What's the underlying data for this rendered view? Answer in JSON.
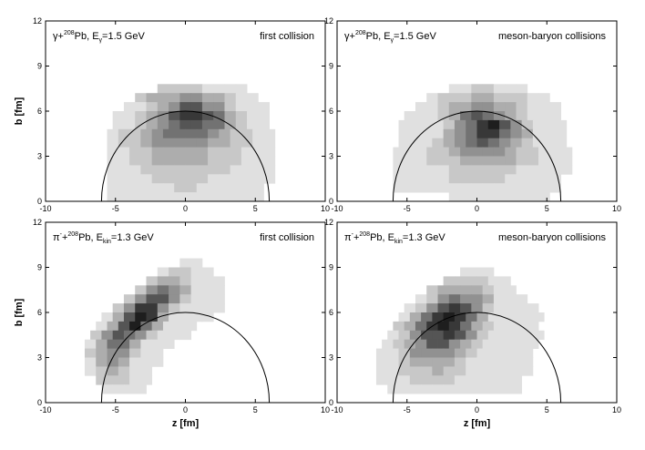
{
  "figure": {
    "x_axis_label": "z [fm]",
    "y_axis_label": "b [fm]"
  },
  "chart_data": [
    {
      "type": "heatmap",
      "id": "tl",
      "annotation_left": {
        "pre": "γ+",
        "sup": "208",
        "mid": "Pb, E",
        "sub": "γ",
        "post": "=1.5 GeV"
      },
      "annotation_right": "first collision",
      "xlim": [
        -10,
        10
      ],
      "ylim": [
        0,
        12
      ],
      "xticks": [
        -10,
        -5,
        0,
        5,
        10
      ],
      "yticks": [
        0,
        3,
        6,
        9,
        12
      ],
      "show_ylabel": true,
      "show_xlabel": false,
      "circle": {
        "center": [
          0,
          0
        ],
        "radius": 6
      },
      "cell": {
        "dz": 0.8,
        "db": 0.6
      },
      "rows": [
        {
          "b": 7.2,
          "z": [
            -2.0,
            3.6
          ],
          "peak": 0.0,
          "sz": 4.0,
          "max": 0.15
        },
        {
          "b": 6.6,
          "z": [
            -3.6,
            4.4
          ],
          "peak": 0.0,
          "sz": 3.4,
          "max": 0.4
        },
        {
          "b": 6.0,
          "z": [
            -4.4,
            5.2
          ],
          "peak": 0.5,
          "sz": 2.6,
          "max": 0.62
        },
        {
          "b": 5.4,
          "z": [
            -5.2,
            5.2
          ],
          "peak": 0.5,
          "sz": 2.8,
          "max": 0.82
        },
        {
          "b": 4.8,
          "z": [
            -5.2,
            5.6
          ],
          "peak": 0.5,
          "sz": 3.0,
          "max": 0.7
        },
        {
          "b": 4.2,
          "z": [
            -5.6,
            5.6
          ],
          "peak": 0.0,
          "sz": 3.6,
          "max": 0.55
        },
        {
          "b": 3.6,
          "z": [
            -5.6,
            5.6
          ],
          "peak": 0.0,
          "sz": 4.0,
          "max": 0.45
        },
        {
          "b": 3.0,
          "z": [
            -5.6,
            5.6
          ],
          "peak": 0.0,
          "sz": 4.0,
          "max": 0.32
        },
        {
          "b": 2.4,
          "z": [
            -5.6,
            5.6
          ],
          "peak": 0.0,
          "sz": 4.2,
          "max": 0.3
        },
        {
          "b": 1.8,
          "z": [
            -5.6,
            5.6
          ],
          "peak": 0.0,
          "sz": 4.2,
          "max": 0.22
        },
        {
          "b": 1.2,
          "z": [
            -5.6,
            5.6
          ],
          "peak": 0.0,
          "sz": 4.6,
          "max": 0.15
        },
        {
          "b": 0.6,
          "z": [
            -5.6,
            5.2
          ],
          "peak": 0.0,
          "sz": 4.6,
          "max": 0.12
        },
        {
          "b": 0.0,
          "z": [
            -5.6,
            4.8
          ],
          "peak": 0.0,
          "sz": 4.6,
          "max": 0.08
        }
      ]
    },
    {
      "type": "heatmap",
      "id": "tr",
      "annotation_left": {
        "pre": "γ+",
        "sup": "208",
        "mid": "Pb, E",
        "sub": "γ",
        "post": "=1.5 GeV"
      },
      "annotation_right": "meson-baryon collisions",
      "xlim": [
        -10,
        10
      ],
      "ylim": [
        0,
        12
      ],
      "xticks": [
        -10,
        -5,
        0,
        5,
        10
      ],
      "yticks": [
        0,
        3,
        6,
        9,
        12
      ],
      "show_ylabel": false,
      "show_xlabel": false,
      "circle": {
        "center": [
          0,
          0
        ],
        "radius": 6
      },
      "cell": {
        "dz": 0.8,
        "db": 0.6
      },
      "rows": [
        {
          "b": 7.2,
          "z": [
            -2.0,
            3.2
          ],
          "peak": 0.4,
          "sz": 3.6,
          "max": 0.12
        },
        {
          "b": 6.6,
          "z": [
            -3.6,
            4.4
          ],
          "peak": 0.4,
          "sz": 3.6,
          "max": 0.3
        },
        {
          "b": 6.0,
          "z": [
            -4.4,
            5.2
          ],
          "peak": 0.4,
          "sz": 3.0,
          "max": 0.45
        },
        {
          "b": 5.4,
          "z": [
            -5.2,
            5.2
          ],
          "peak": 0.4,
          "sz": 2.6,
          "max": 0.62
        },
        {
          "b": 4.8,
          "z": [
            -5.6,
            5.6
          ],
          "peak": 0.8,
          "sz": 2.4,
          "max": 0.82
        },
        {
          "b": 4.2,
          "z": [
            -5.6,
            5.6
          ],
          "peak": 0.8,
          "sz": 2.6,
          "max": 0.75
        },
        {
          "b": 3.6,
          "z": [
            -5.6,
            6.0
          ],
          "peak": 0.4,
          "sz": 3.0,
          "max": 0.6
        },
        {
          "b": 3.0,
          "z": [
            -6.0,
            6.0
          ],
          "peak": 0.4,
          "sz": 3.2,
          "max": 0.45
        },
        {
          "b": 2.4,
          "z": [
            -6.0,
            6.0
          ],
          "peak": 0.4,
          "sz": 3.6,
          "max": 0.32
        },
        {
          "b": 1.8,
          "z": [
            -6.0,
            6.0
          ],
          "peak": 0.4,
          "sz": 4.0,
          "max": 0.2
        },
        {
          "b": 1.2,
          "z": [
            -6.0,
            5.6
          ],
          "peak": 0.4,
          "sz": 4.4,
          "max": 0.15
        },
        {
          "b": 0.6,
          "z": [
            -6.0,
            5.6
          ],
          "peak": 0.4,
          "sz": 4.6,
          "max": 0.1
        },
        {
          "b": 0.0,
          "z": [
            -2.0,
            4.4
          ],
          "peak": 0.4,
          "sz": 4.0,
          "max": 0.06
        }
      ]
    },
    {
      "type": "heatmap",
      "id": "bl",
      "annotation_left": {
        "pre": "π",
        "sup": "-",
        "mid": "+",
        "sup2": "208",
        "mid2": "Pb, E",
        "sub": "kin",
        "post": "=1.3 GeV"
      },
      "annotation_right": "first collision",
      "xlim": [
        -10,
        10
      ],
      "ylim": [
        0,
        12
      ],
      "xticks": [
        -10,
        -5,
        0,
        5,
        10
      ],
      "yticks": [
        0,
        3,
        6,
        9,
        12
      ],
      "show_ylabel": true,
      "show_xlabel": true,
      "circle": {
        "center": [
          0,
          0
        ],
        "radius": 6
      },
      "cell": {
        "dz": 0.8,
        "db": 0.6
      },
      "rows": [
        {
          "b": 9.0,
          "z": [
            -0.4,
            0.4
          ],
          "peak": 0.0,
          "sz": 1.6,
          "max": 0.1
        },
        {
          "b": 8.4,
          "z": [
            -2.0,
            1.2
          ],
          "peak": -0.4,
          "sz": 2.0,
          "max": 0.15
        },
        {
          "b": 7.8,
          "z": [
            -2.8,
            2.0
          ],
          "peak": -1.2,
          "sz": 1.8,
          "max": 0.35
        },
        {
          "b": 7.2,
          "z": [
            -3.6,
            2.4
          ],
          "peak": -1.6,
          "sz": 1.8,
          "max": 0.55
        },
        {
          "b": 6.6,
          "z": [
            -4.4,
            2.4
          ],
          "peak": -2.0,
          "sz": 1.6,
          "max": 0.72
        },
        {
          "b": 6.0,
          "z": [
            -5.2,
            2.0
          ],
          "peak": -2.8,
          "sz": 1.6,
          "max": 0.8
        },
        {
          "b": 5.4,
          "z": [
            -6.0,
            1.2
          ],
          "peak": -3.2,
          "sz": 1.6,
          "max": 0.92
        },
        {
          "b": 4.8,
          "z": [
            -6.4,
            0.4
          ],
          "peak": -3.6,
          "sz": 1.6,
          "max": 0.85
        },
        {
          "b": 4.2,
          "z": [
            -6.8,
            -0.4
          ],
          "peak": -4.4,
          "sz": 1.6,
          "max": 0.7
        },
        {
          "b": 3.6,
          "z": [
            -7.2,
            -1.2
          ],
          "peak": -4.8,
          "sz": 1.4,
          "max": 0.58
        },
        {
          "b": 3.0,
          "z": [
            -7.2,
            -2.0
          ],
          "peak": -5.2,
          "sz": 1.4,
          "max": 0.48
        },
        {
          "b": 2.4,
          "z": [
            -7.2,
            -2.4
          ],
          "peak": -5.2,
          "sz": 1.4,
          "max": 0.4
        },
        {
          "b": 1.8,
          "z": [
            -7.2,
            -2.8
          ],
          "peak": -5.2,
          "sz": 1.4,
          "max": 0.3
        },
        {
          "b": 1.2,
          "z": [
            -6.4,
            -3.2
          ],
          "peak": -5.2,
          "sz": 1.6,
          "max": 0.18
        },
        {
          "b": 0.6,
          "z": [
            -6.0,
            -3.6
          ],
          "peak": -5.2,
          "sz": 1.8,
          "max": 0.1
        }
      ]
    },
    {
      "type": "heatmap",
      "id": "br",
      "annotation_left": {
        "pre": "π",
        "sup": "-",
        "mid": "+",
        "sup2": "208",
        "mid2": "Pb, E",
        "sub": "kin",
        "post": "=1.3 GeV"
      },
      "annotation_right": "meson-baryon collisions",
      "xlim": [
        -10,
        10
      ],
      "ylim": [
        0,
        12
      ],
      "xticks": [
        -10,
        -5,
        0,
        5,
        10
      ],
      "yticks": [
        0,
        3,
        6,
        9,
        12
      ],
      "show_ylabel": false,
      "show_xlabel": true,
      "circle": {
        "center": [
          0,
          0
        ],
        "radius": 6
      },
      "cell": {
        "dz": 0.8,
        "db": 0.6
      },
      "rows": [
        {
          "b": 8.4,
          "z": [
            -1.2,
            0.4
          ],
          "peak": -0.4,
          "sz": 2.0,
          "max": 0.1
        },
        {
          "b": 7.8,
          "z": [
            -2.4,
            1.6
          ],
          "peak": -0.8,
          "sz": 2.4,
          "max": 0.2
        },
        {
          "b": 7.2,
          "z": [
            -3.6,
            2.4
          ],
          "peak": -1.2,
          "sz": 2.2,
          "max": 0.35
        },
        {
          "b": 6.6,
          "z": [
            -4.4,
            3.2
          ],
          "peak": -1.2,
          "sz": 2.2,
          "max": 0.55
        },
        {
          "b": 6.0,
          "z": [
            -5.2,
            3.6
          ],
          "peak": -1.6,
          "sz": 2.2,
          "max": 0.75
        },
        {
          "b": 5.4,
          "z": [
            -5.6,
            4.0
          ],
          "peak": -2.0,
          "sz": 2.2,
          "max": 0.9
        },
        {
          "b": 4.8,
          "z": [
            -6.0,
            4.0
          ],
          "peak": -2.4,
          "sz": 2.4,
          "max": 0.92
        },
        {
          "b": 4.2,
          "z": [
            -6.4,
            4.0
          ],
          "peak": -2.4,
          "sz": 2.4,
          "max": 0.8
        },
        {
          "b": 3.6,
          "z": [
            -6.8,
            4.0
          ],
          "peak": -2.8,
          "sz": 2.4,
          "max": 0.65
        },
        {
          "b": 3.0,
          "z": [
            -7.2,
            3.6
          ],
          "peak": -2.8,
          "sz": 2.6,
          "max": 0.5
        },
        {
          "b": 2.4,
          "z": [
            -7.2,
            3.6
          ],
          "peak": -3.2,
          "sz": 2.6,
          "max": 0.36
        },
        {
          "b": 1.8,
          "z": [
            -7.2,
            3.2
          ],
          "peak": -3.2,
          "sz": 2.8,
          "max": 0.25
        },
        {
          "b": 1.2,
          "z": [
            -7.2,
            2.8
          ],
          "peak": -3.2,
          "sz": 3.0,
          "max": 0.16
        },
        {
          "b": 0.6,
          "z": [
            -6.4,
            2.4
          ],
          "peak": -3.2,
          "sz": 3.2,
          "max": 0.1
        }
      ]
    }
  ]
}
